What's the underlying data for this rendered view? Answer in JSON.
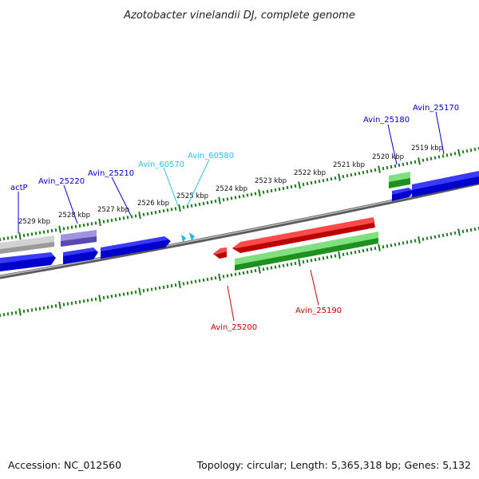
{
  "title": "Azotobacter vinelandii DJ, complete genome",
  "footer": {
    "accession": "Accession: NC_012560",
    "summary": "Topology: circular; Length: 5,365,318 bp; Genes: 5,132"
  },
  "colors": {
    "backbone": "#777777",
    "tick": "#1e7a1e",
    "blue": "#0000ee",
    "gray_gene": "#bdbdbd",
    "purple_gene": "#6f60c8",
    "green_gene": "#33bb33",
    "red_gene": "#e01010",
    "cyan_gene": "#22b8e8",
    "label_blue": "#0000cc",
    "label_cyan": "#33bbee",
    "label_red": "#cc0000"
  },
  "ticks": [
    {
      "label": "2529 kbp"
    },
    {
      "label": "2528 kbp"
    },
    {
      "label": "2527 kbp"
    },
    {
      "label": "2526 kbp"
    },
    {
      "label": "2525 kbp"
    },
    {
      "label": "2524 kbp"
    },
    {
      "label": "2523 kbp"
    },
    {
      "label": "2522 kbp"
    },
    {
      "label": "2521 kbp"
    },
    {
      "label": "2520 kbp"
    },
    {
      "label": "2519 kbp"
    }
  ],
  "gene_labels": [
    {
      "text": "actP",
      "color": "label_blue"
    },
    {
      "text": "Avin_25220",
      "color": "label_blue"
    },
    {
      "text": "Avin_25210",
      "color": "label_blue"
    },
    {
      "text": "Avin_60570",
      "color": "label_cyan"
    },
    {
      "text": "Avin_60580",
      "color": "label_cyan"
    },
    {
      "text": "Avin_25180",
      "color": "label_blue"
    },
    {
      "text": "Avin_25170",
      "color": "label_blue"
    },
    {
      "text": "Avin_25200",
      "color": "label_red"
    },
    {
      "text": "Avin_25190",
      "color": "label_red"
    }
  ],
  "genes": [
    {
      "id": "gene-gray-outer",
      "color": "gray_gene"
    },
    {
      "id": "gene-purple-outer",
      "color": "purple_gene"
    },
    {
      "id": "gene-green-outer",
      "color": "green_gene"
    },
    {
      "id": "gene-blue-inner-1",
      "color": "blue"
    },
    {
      "id": "gene-blue-inner-2",
      "color": "blue"
    },
    {
      "id": "gene-blue-inner-3",
      "color": "blue"
    },
    {
      "id": "gene-cyan-1",
      "color": "cyan_gene"
    },
    {
      "id": "gene-cyan-2",
      "color": "cyan_gene"
    },
    {
      "id": "gene-blue-inner-4",
      "color": "blue"
    },
    {
      "id": "gene-blue-inner-5",
      "color": "blue"
    },
    {
      "id": "gene-red-small",
      "color": "red_gene"
    },
    {
      "id": "gene-red-large",
      "color": "red_gene"
    },
    {
      "id": "gene-green-large",
      "color": "green_gene"
    }
  ]
}
